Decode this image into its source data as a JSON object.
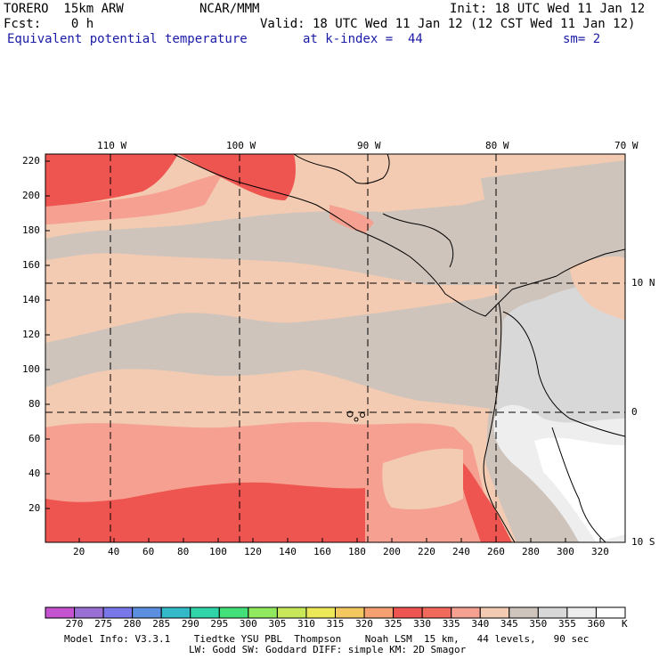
{
  "header": {
    "model": "TORERO  15km ARW",
    "center": "NCAR/MMM",
    "init": "Init: 18 UTC Wed 11 Jan 12",
    "fcst": "Fcst:    0 h",
    "valid": "Valid: 18 UTC Wed 11 Jan 12 (12 CST Wed 11 Jan 12)",
    "field": "Equivalent potential temperature",
    "level": "at k-index =  44",
    "smooth": "sm= 2"
  },
  "map": {
    "lon_labels": [
      "110 W",
      "100 W",
      "90 W",
      "80 W",
      "70 W"
    ],
    "lat_labels": [
      "10 N",
      "0",
      "10 S"
    ],
    "y_ticks": [
      "220",
      "200",
      "180",
      "160",
      "140",
      "120",
      "100",
      "80",
      "60",
      "40",
      "20"
    ],
    "x_ticks": [
      "20",
      "40",
      "60",
      "80",
      "100",
      "120",
      "140",
      "160",
      "180",
      "200",
      "220",
      "240",
      "260",
      "280",
      "300",
      "320"
    ]
  },
  "colorbar": {
    "levels": [
      "270",
      "275",
      "280",
      "285",
      "290",
      "295",
      "300",
      "305",
      "310",
      "315",
      "320",
      "325",
      "330",
      "335",
      "340",
      "345",
      "350",
      "355",
      "360"
    ],
    "unit": "K",
    "colors": [
      "#c552cf",
      "#9a6fd4",
      "#7a78e8",
      "#5c8fe0",
      "#33b9c8",
      "#2fd4a8",
      "#43e07a",
      "#8fe85e",
      "#c8e85a",
      "#ece85a",
      "#f3c860",
      "#f4a070",
      "#ef5550",
      "#f26a5c",
      "#f5a090",
      "#f3cbb2",
      "#cfc4bc",
      "#d8d8d8",
      "#eeeeee",
      "#ffffff"
    ]
  },
  "info": {
    "line1": "Model Info: V3.3.1    Tiedtke YSU PBL  Thompson    Noah LSM  15 km,   44 levels,   90 sec",
    "line2": "LW: Godd SW: Goddard DIFF: simple KM: 2D Smagor"
  }
}
